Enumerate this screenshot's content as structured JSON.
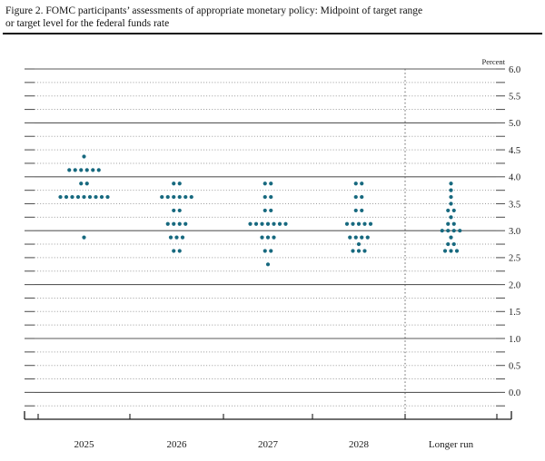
{
  "title": {
    "line1": "Figure 2. FOMC participants’ assessments of appropriate monetary policy: Midpoint of target range",
    "line2": "or target level for the federal funds rate"
  },
  "chart_data": {
    "type": "scatter",
    "subtype": "fomc-dot-plot",
    "unit_label": "Percent",
    "ylim": [
      0.0,
      6.0
    ],
    "grid_interval": 0.25,
    "label_interval": 0.5,
    "y_tick_labels": [
      "6.0",
      "5.5",
      "5.0",
      "4.5",
      "4.0",
      "3.5",
      "3.0",
      "2.5",
      "2.0",
      "1.5",
      "1.0",
      "0.5",
      "0.0"
    ],
    "categories": [
      "2025",
      "2026",
      "2027",
      "2028",
      "Longer run"
    ],
    "series": [
      {
        "name": "2025",
        "dots": [
          {
            "v": 4.375,
            "n": 1
          },
          {
            "v": 4.125,
            "n": 6
          },
          {
            "v": 3.875,
            "n": 2
          },
          {
            "v": 3.625,
            "n": 9
          },
          {
            "v": 2.875,
            "n": 1
          }
        ]
      },
      {
        "name": "2026",
        "dots": [
          {
            "v": 3.875,
            "n": 2
          },
          {
            "v": 3.625,
            "n": 6
          },
          {
            "v": 3.375,
            "n": 2
          },
          {
            "v": 3.125,
            "n": 4
          },
          {
            "v": 2.875,
            "n": 3
          },
          {
            "v": 2.625,
            "n": 2
          }
        ]
      },
      {
        "name": "2027",
        "dots": [
          {
            "v": 3.875,
            "n": 2
          },
          {
            "v": 3.625,
            "n": 2
          },
          {
            "v": 3.375,
            "n": 2
          },
          {
            "v": 3.125,
            "n": 7
          },
          {
            "v": 2.875,
            "n": 3
          },
          {
            "v": 2.625,
            "n": 2
          },
          {
            "v": 2.375,
            "n": 1
          }
        ]
      },
      {
        "name": "2028",
        "dots": [
          {
            "v": 3.875,
            "n": 2
          },
          {
            "v": 3.625,
            "n": 2
          },
          {
            "v": 3.375,
            "n": 2
          },
          {
            "v": 3.125,
            "n": 5
          },
          {
            "v": 2.875,
            "n": 4
          },
          {
            "v": 2.75,
            "n": 1
          },
          {
            "v": 2.625,
            "n": 3
          }
        ]
      },
      {
        "name": "Longer run",
        "dots": [
          {
            "v": 3.875,
            "n": 1
          },
          {
            "v": 3.75,
            "n": 1
          },
          {
            "v": 3.625,
            "n": 1
          },
          {
            "v": 3.5,
            "n": 1
          },
          {
            "v": 3.375,
            "n": 2
          },
          {
            "v": 3.25,
            "n": 1
          },
          {
            "v": 3.125,
            "n": 2
          },
          {
            "v": 3.0,
            "n": 4
          },
          {
            "v": 2.875,
            "n": 1
          },
          {
            "v": 2.75,
            "n": 2
          },
          {
            "v": 2.625,
            "n": 3
          }
        ]
      }
    ],
    "colors": {
      "dot": "#17697f",
      "solid_gridline": "#5a5a5a",
      "dotted_gridline": "#9b9b9b",
      "axis": "#1a1a1a"
    },
    "legend_position": "none",
    "grid": "on"
  }
}
